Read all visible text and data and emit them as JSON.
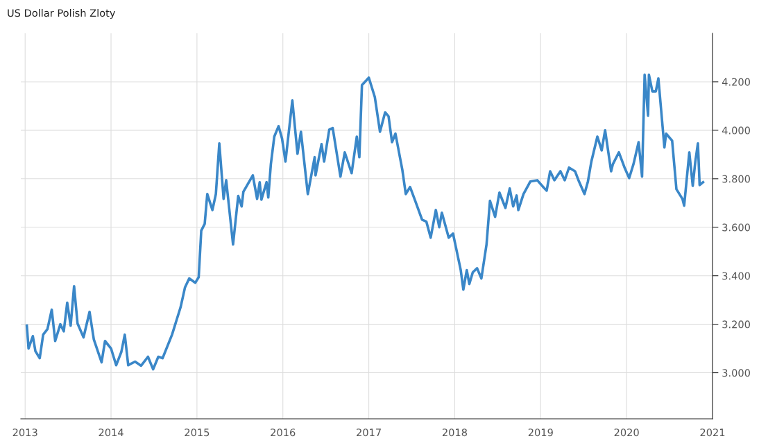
{
  "chart_data": {
    "type": "line",
    "title": "US Dollar Polish Zloty",
    "series": [
      {
        "color": "#3a87c8",
        "x": [
          2013.02,
          2013.04,
          2013.09,
          2013.12,
          2013.17,
          2013.21,
          2013.26,
          2013.31,
          2013.35,
          2013.41,
          2013.45,
          2013.49,
          2013.53,
          2013.57,
          2013.61,
          2013.68,
          2013.75,
          2013.8,
          2013.89,
          2013.93,
          2014.0,
          2014.06,
          2014.12,
          2014.16,
          2014.2,
          2014.28,
          2014.35,
          2014.43,
          2014.49,
          2014.55,
          2014.6,
          2014.71,
          2014.81,
          2014.86,
          2014.91,
          2014.98,
          2015.02,
          2015.05,
          2015.09,
          2015.12,
          2015.18,
          2015.22,
          2015.26,
          2015.31,
          2015.34,
          2015.42,
          2015.48,
          2015.52,
          2015.54,
          2015.65,
          2015.7,
          2015.73,
          2015.75,
          2015.81,
          2015.83,
          2015.86,
          2015.9,
          2015.95,
          2015.99,
          2016.03,
          2016.11,
          2016.17,
          2016.21,
          2016.29,
          2016.37,
          2016.38,
          2016.45,
          2016.48,
          2016.54,
          2016.58,
          2016.67,
          2016.72,
          2016.8,
          2016.86,
          2016.89,
          2016.92,
          2017.0,
          2017.07,
          2017.13,
          2017.19,
          2017.23,
          2017.27,
          2017.31,
          2017.39,
          2017.43,
          2017.48,
          2017.54,
          2017.62,
          2017.67,
          2017.72,
          2017.78,
          2017.82,
          2017.85,
          2017.93,
          2017.98,
          2018.07,
          2018.1,
          2018.14,
          2018.17,
          2018.21,
          2018.26,
          2018.31,
          2018.37,
          2018.41,
          2018.47,
          2018.52,
          2018.59,
          2018.64,
          2018.68,
          2018.72,
          2018.74,
          2018.8,
          2018.88,
          2018.96,
          2019.03,
          2019.07,
          2019.11,
          2019.16,
          2019.23,
          2019.28,
          2019.33,
          2019.4,
          2019.44,
          2019.51,
          2019.55,
          2019.59,
          2019.66,
          2019.71,
          2019.75,
          2019.82,
          2019.84,
          2019.91,
          2019.98,
          2020.03,
          2020.08,
          2020.14,
          2020.18,
          2020.21,
          2020.25,
          2020.26,
          2020.3,
          2020.34,
          2020.37,
          2020.44,
          2020.46,
          2020.53,
          2020.58,
          2020.65,
          2020.67,
          2020.73,
          2020.77,
          2020.8,
          2020.83,
          2020.85,
          2020.89
        ],
        "values": [
          3.194,
          3.1,
          3.151,
          3.089,
          3.06,
          3.157,
          3.18,
          3.26,
          3.131,
          3.2,
          3.171,
          3.289,
          3.194,
          3.357,
          3.203,
          3.146,
          3.251,
          3.137,
          3.043,
          3.131,
          3.1,
          3.031,
          3.086,
          3.157,
          3.031,
          3.046,
          3.029,
          3.066,
          3.014,
          3.066,
          3.06,
          3.157,
          3.271,
          3.351,
          3.389,
          3.371,
          3.394,
          3.586,
          3.614,
          3.737,
          3.671,
          3.737,
          3.946,
          3.717,
          3.794,
          3.529,
          3.729,
          3.686,
          3.746,
          3.814,
          3.717,
          3.786,
          3.714,
          3.786,
          3.723,
          3.86,
          3.974,
          4.017,
          3.966,
          3.871,
          4.123,
          3.903,
          3.994,
          3.737,
          3.889,
          3.814,
          3.943,
          3.871,
          4.003,
          4.009,
          3.809,
          3.909,
          3.823,
          3.974,
          3.889,
          4.186,
          4.217,
          4.137,
          3.994,
          4.074,
          4.057,
          3.951,
          3.986,
          3.837,
          3.737,
          3.766,
          3.709,
          3.631,
          3.623,
          3.557,
          3.671,
          3.6,
          3.66,
          3.557,
          3.574,
          3.423,
          3.343,
          3.423,
          3.366,
          3.414,
          3.431,
          3.389,
          3.529,
          3.709,
          3.643,
          3.743,
          3.68,
          3.76,
          3.686,
          3.731,
          3.671,
          3.737,
          3.789,
          3.794,
          3.766,
          3.751,
          3.831,
          3.794,
          3.831,
          3.794,
          3.846,
          3.831,
          3.794,
          3.737,
          3.789,
          3.871,
          3.974,
          3.917,
          4.0,
          3.831,
          3.86,
          3.909,
          3.843,
          3.803,
          3.86,
          3.951,
          3.809,
          4.229,
          4.06,
          4.229,
          4.16,
          4.16,
          4.214,
          3.929,
          3.986,
          3.957,
          3.757,
          3.717,
          3.689,
          3.909,
          3.771,
          3.871,
          3.946,
          3.774,
          3.786
        ]
      }
    ],
    "xlim": [
      2012.95,
      2021.0
    ],
    "xticks": [
      2013,
      2014,
      2015,
      2016,
      2017,
      2018,
      2019,
      2020,
      2021
    ],
    "ylim": [
      2.81,
      4.4
    ],
    "yticks": [
      {
        "value": 3.0,
        "label": "3.000"
      },
      {
        "value": 3.2,
        "label": "3.200"
      },
      {
        "value": 3.4,
        "label": "3.400"
      },
      {
        "value": 3.6,
        "label": "3.600"
      },
      {
        "value": 3.8,
        "label": "3.800"
      },
      {
        "value": 4.0,
        "label": "4.000"
      },
      {
        "value": 4.2,
        "label": "4.200"
      }
    ],
    "grid": true,
    "marker": "none",
    "line_style": "solid"
  }
}
